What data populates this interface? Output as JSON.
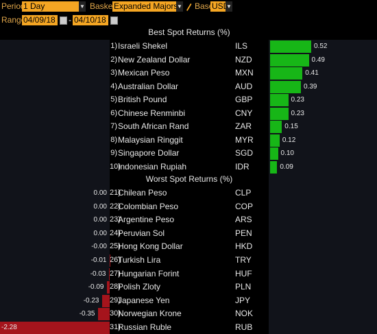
{
  "toolbar": {
    "period_label": "Period",
    "period_value": "1 Day",
    "basket_label": "Basket",
    "basket_value": "Expanded Majors",
    "base_label": "Base",
    "base_value": "USD",
    "range_label": "Range",
    "range_start": "04/09/18",
    "range_sep": "-",
    "range_end": "04/10/18"
  },
  "best": {
    "header": "Best Spot Returns (%)",
    "rows": [
      {
        "rank": "1)",
        "name": "Israeli Shekel",
        "code": "ILS",
        "value": 0.52,
        "label": "0.52"
      },
      {
        "rank": "2)",
        "name": "New Zealand Dollar",
        "code": "NZD",
        "value": 0.49,
        "label": "0.49"
      },
      {
        "rank": "3)",
        "name": "Mexican Peso",
        "code": "MXN",
        "value": 0.41,
        "label": "0.41"
      },
      {
        "rank": "4)",
        "name": "Australian Dollar",
        "code": "AUD",
        "value": 0.39,
        "label": "0.39"
      },
      {
        "rank": "5)",
        "name": "British Pound",
        "code": "GBP",
        "value": 0.23,
        "label": "0.23"
      },
      {
        "rank": "6)",
        "name": "Chinese Renminbi",
        "code": "CNY",
        "value": 0.23,
        "label": "0.23"
      },
      {
        "rank": "7)",
        "name": "South African Rand",
        "code": "ZAR",
        "value": 0.15,
        "label": "0.15"
      },
      {
        "rank": "8)",
        "name": "Malaysian Ringgit",
        "code": "MYR",
        "value": 0.12,
        "label": "0.12"
      },
      {
        "rank": "9)",
        "name": "Singapore Dollar",
        "code": "SGD",
        "value": 0.1,
        "label": "0.10"
      },
      {
        "rank": "10)",
        "name": "Indonesian Rupiah",
        "code": "IDR",
        "value": 0.09,
        "label": "0.09"
      }
    ]
  },
  "worst": {
    "header": "Worst Spot Returns (%)",
    "rows": [
      {
        "rank": "21)",
        "name": "Chilean Peso",
        "code": "CLP",
        "value": 0.0,
        "label": "0.00"
      },
      {
        "rank": "22)",
        "name": "Colombian Peso",
        "code": "COP",
        "value": 0.0,
        "label": "0.00"
      },
      {
        "rank": "23)",
        "name": "Argentine Peso",
        "code": "ARS",
        "value": 0.0,
        "label": "0.00"
      },
      {
        "rank": "24)",
        "name": "Peruvian Sol",
        "code": "PEN",
        "value": 0.0,
        "label": "0.00"
      },
      {
        "rank": "25)",
        "name": "Hong Kong Dollar",
        "code": "HKD",
        "value": -0.0,
        "label": "-0.00"
      },
      {
        "rank": "26)",
        "name": "Turkish Lira",
        "code": "TRY",
        "value": -0.01,
        "label": "-0.01"
      },
      {
        "rank": "27)",
        "name": "Hungarian Forint",
        "code": "HUF",
        "value": -0.03,
        "label": "-0.03"
      },
      {
        "rank": "28)",
        "name": "Polish Zloty",
        "code": "PLN",
        "value": -0.09,
        "label": "-0.09"
      },
      {
        "rank": "29)",
        "name": "Japanese Yen",
        "code": "JPY",
        "value": -0.23,
        "label": "-0.23"
      },
      {
        "rank": "30)",
        "name": "Norwegian Krone",
        "code": "NOK",
        "value": -0.35,
        "label": "-0.35"
      },
      {
        "rank": "31)",
        "name": "Russian Ruble",
        "code": "RUB",
        "value": -2.28,
        "label": "-2.28"
      }
    ]
  },
  "colors": {
    "positive": "#17b617",
    "negative": "#a5141c",
    "input_bg": "#f5a623",
    "label": "#e0a64a"
  },
  "icons": {
    "dropdown": "triangle-down",
    "pencil": "pencil-icon",
    "calendar": "calendar-icon"
  }
}
